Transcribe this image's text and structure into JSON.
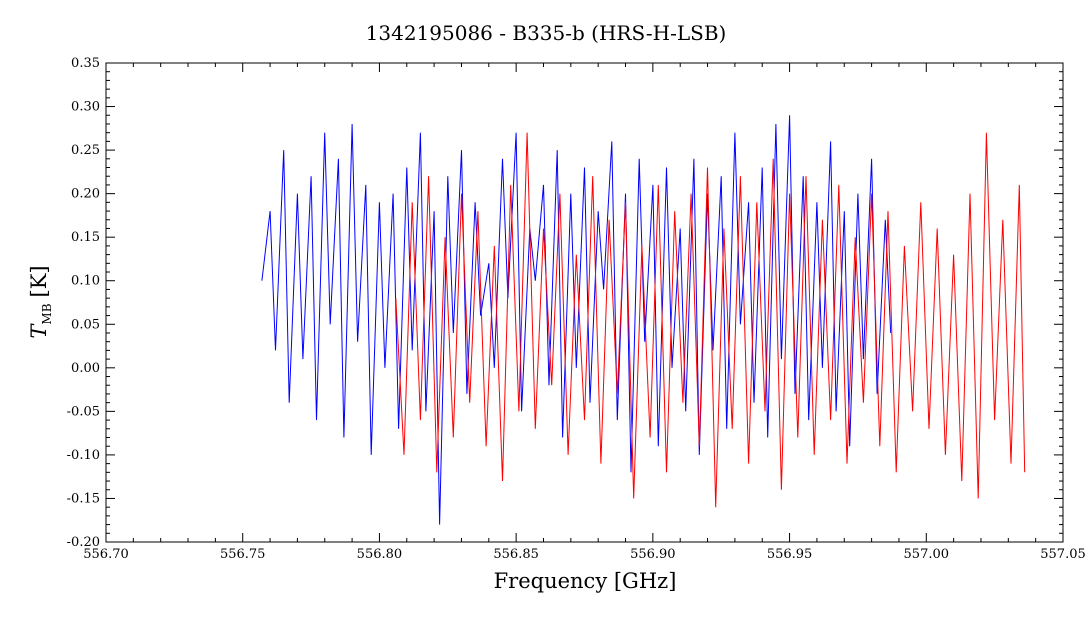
{
  "chart_data": {
    "type": "line",
    "title": "1342195086 - B335-b (HRS-H-LSB)",
    "xlabel": "Frequency [GHz]",
    "ylabel": {
      "main": "T",
      "sub": "MB",
      "unit": "[K]"
    },
    "xlim": [
      556.7,
      557.05
    ],
    "ylim": [
      -0.2,
      0.35
    ],
    "x_ticks": [
      "556.70",
      "556.75",
      "556.80",
      "556.85",
      "556.90",
      "556.95",
      "557.00",
      "557.05"
    ],
    "y_ticks": [
      "-0.20",
      "-0.15",
      "-0.10",
      "-0.05",
      "0.00",
      "0.05",
      "0.10",
      "0.15",
      "0.20",
      "0.25",
      "0.30",
      "0.35"
    ],
    "grid": false,
    "series": [
      {
        "color": "#0000ff",
        "x": [
          556.757,
          556.76,
          556.762,
          556.765,
          556.767,
          556.77,
          556.772,
          556.775,
          556.777,
          556.78,
          556.782,
          556.785,
          556.787,
          556.79,
          556.792,
          556.795,
          556.797,
          556.8,
          556.802,
          556.805,
          556.807,
          556.81,
          556.812,
          556.815,
          556.817,
          556.82,
          556.822,
          556.825,
          556.827,
          556.83,
          556.832,
          556.835,
          556.837,
          556.84,
          556.842,
          556.845,
          556.847,
          556.85,
          556.852,
          556.855,
          556.857,
          556.86,
          556.862,
          556.865,
          556.867,
          556.87,
          556.872,
          556.875,
          556.877,
          556.88,
          556.882,
          556.885,
          556.887,
          556.89,
          556.892,
          556.895,
          556.897,
          556.9,
          556.902,
          556.905,
          556.907,
          556.91,
          556.912,
          556.915,
          556.917,
          556.92,
          556.922,
          556.925,
          556.927,
          556.93,
          556.932,
          556.935,
          556.937,
          556.94,
          556.942,
          556.945,
          556.947,
          556.95,
          556.952,
          556.955,
          556.957,
          556.96,
          556.962,
          556.965,
          556.967,
          556.97,
          556.972,
          556.975,
          556.977,
          556.98,
          556.982,
          556.985,
          556.987
        ],
        "values": [
          0.1,
          0.18,
          0.02,
          0.25,
          -0.04,
          0.2,
          0.01,
          0.22,
          -0.06,
          0.27,
          0.05,
          0.24,
          -0.08,
          0.28,
          0.03,
          0.21,
          -0.1,
          0.19,
          0.0,
          0.2,
          -0.07,
          0.23,
          0.02,
          0.27,
          -0.05,
          0.18,
          -0.18,
          0.22,
          0.04,
          0.25,
          -0.03,
          0.19,
          0.06,
          0.12,
          0.0,
          0.24,
          0.08,
          0.27,
          -0.05,
          0.16,
          0.1,
          0.21,
          -0.02,
          0.25,
          -0.08,
          0.2,
          0.0,
          0.23,
          -0.04,
          0.18,
          0.09,
          0.26,
          -0.06,
          0.2,
          -0.12,
          0.24,
          0.03,
          0.21,
          -0.09,
          0.23,
          0.0,
          0.16,
          -0.05,
          0.24,
          -0.1,
          0.2,
          0.02,
          0.22,
          -0.07,
          0.27,
          0.05,
          0.19,
          -0.04,
          0.23,
          -0.08,
          0.28,
          0.01,
          0.29,
          -0.03,
          0.22,
          -0.06,
          0.19,
          0.0,
          0.26,
          -0.05,
          0.18,
          -0.09,
          0.2,
          0.01,
          0.24,
          -0.03,
          0.17,
          0.04
        ]
      },
      {
        "color": "#ff0000",
        "x": [
          556.806,
          556.809,
          556.812,
          556.815,
          556.818,
          556.821,
          556.824,
          556.827,
          556.83,
          556.833,
          556.836,
          556.839,
          556.842,
          556.845,
          556.848,
          556.851,
          556.854,
          556.857,
          556.86,
          556.863,
          556.866,
          556.869,
          556.872,
          556.875,
          556.878,
          556.881,
          556.884,
          556.887,
          556.89,
          556.893,
          556.896,
          556.899,
          556.902,
          556.905,
          556.908,
          556.911,
          556.914,
          556.917,
          556.92,
          556.923,
          556.926,
          556.929,
          556.932,
          556.935,
          556.938,
          556.941,
          556.944,
          556.947,
          556.95,
          556.953,
          556.956,
          556.959,
          556.962,
          556.965,
          556.968,
          556.971,
          556.974,
          556.977,
          556.98,
          556.983,
          556.986,
          556.989,
          556.992,
          556.995,
          556.998,
          557.001,
          557.004,
          557.007,
          557.01,
          557.013,
          557.016,
          557.019,
          557.022,
          557.025,
          557.028,
          557.031,
          557.034,
          557.036
        ],
        "values": [
          0.08,
          -0.1,
          0.19,
          -0.06,
          0.22,
          -0.12,
          0.15,
          -0.08,
          0.2,
          -0.04,
          0.18,
          -0.09,
          0.14,
          -0.13,
          0.21,
          -0.05,
          0.27,
          -0.07,
          0.16,
          -0.02,
          0.2,
          -0.1,
          0.13,
          -0.06,
          0.22,
          -0.11,
          0.17,
          -0.03,
          0.19,
          -0.15,
          0.14,
          -0.08,
          0.21,
          -0.12,
          0.18,
          -0.04,
          0.2,
          -0.09,
          0.23,
          -0.16,
          0.16,
          -0.07,
          0.22,
          -0.11,
          0.19,
          -0.05,
          0.24,
          -0.14,
          0.2,
          -0.08,
          0.22,
          -0.1,
          0.17,
          -0.06,
          0.21,
          -0.11,
          0.15,
          -0.04,
          0.2,
          -0.09,
          0.18,
          -0.12,
          0.14,
          -0.05,
          0.19,
          -0.07,
          0.16,
          -0.1,
          0.13,
          -0.13,
          0.2,
          -0.15,
          0.27,
          -0.06,
          0.17,
          -0.11,
          0.21,
          -0.12
        ]
      }
    ]
  }
}
